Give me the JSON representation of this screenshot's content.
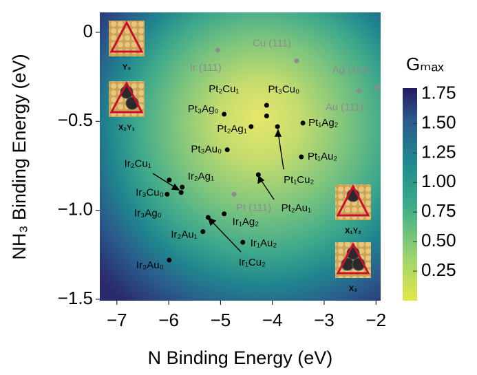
{
  "chart_data": {
    "type": "scatter",
    "xlabel": "N Binding Energy (eV)",
    "ylabel": "NH₃ Binding Energy (eV)",
    "xlim": [
      -7.33,
      -1.91
    ],
    "ylim": [
      -1.508,
      0.112
    ],
    "xticks": [
      {
        "value": -7,
        "label": "−7"
      },
      {
        "value": -6,
        "label": "−6"
      },
      {
        "value": -5,
        "label": "−5"
      },
      {
        "value": -4,
        "label": "−4"
      },
      {
        "value": -3,
        "label": "−3"
      },
      {
        "value": -2,
        "label": "−2"
      }
    ],
    "yticks": [
      0,
      {
        "value": -0.5,
        "label": "−0.5"
      },
      {
        "value": -1,
        "label": "−1.0"
      },
      {
        "value": -1.5,
        "label": "−1.5"
      }
    ],
    "series": [
      {
        "color": "#000000",
        "labels": [
          "Pt₂Cu₁",
          "Pt₃Cu₀",
          "Pt₃Ag₀",
          "Pt₂Ag₁",
          "Pt₁Cu₂",
          "Pt₁Ag₂",
          "Pt₃Au₀",
          "Pt₁Au₂",
          "Pt₂Au₁",
          "Ir₂Cu₁",
          "Ir₂Ag₁",
          "Ir₃Cu₀",
          "Ir₃Ag₀",
          "Ir₂Au₁",
          "Ir₁Cu₂",
          "Ir₁Ag₂",
          "Ir₁Au₂",
          "Ir₃Au₀"
        ],
        "x": [
          -4.11,
          -4.11,
          -4.93,
          -4.41,
          -3.9,
          -3.41,
          -4.87,
          -3.44,
          -4.27,
          -5.76,
          -5.74,
          -5.99,
          -6.03,
          -5.34,
          -5.24,
          -4.93,
          -4.57,
          -5.99
        ],
        "values": [
          -0.41,
          -0.47,
          -0.46,
          -0.53,
          -0.53,
          -0.51,
          -0.66,
          -0.7,
          -0.8,
          -0.9,
          -0.87,
          -0.83,
          -0.91,
          -1.12,
          -1.04,
          -1.02,
          -1.18,
          -1.28
        ]
      },
      {
        "color": "#8c8c8c",
        "labels": [
          "Ir (111)",
          "Cu (111)",
          "Ag (111)",
          "Au (111)",
          "Pt (111)"
        ],
        "x": [
          -5.05,
          -3.53,
          -1.97,
          -2.33,
          -4.74
        ],
        "values": [
          -0.1,
          -0.16,
          -0.31,
          -0.33,
          -0.91
        ]
      }
    ],
    "colorbar": {
      "title": "Gₘₐₓ",
      "lim": [
        0,
        1.8
      ],
      "ticks": [
        1.75,
        {
          "value": 1.5,
          "label": "1.50"
        },
        1.25,
        {
          "value": 1,
          "label": "1.00"
        },
        0.75,
        {
          "value": 0.5,
          "label": "0.50"
        },
        0.25
      ]
    },
    "insets": [
      "Y₃",
      "X₂Y₁",
      "X₁Y₂",
      "X₃"
    ]
  }
}
